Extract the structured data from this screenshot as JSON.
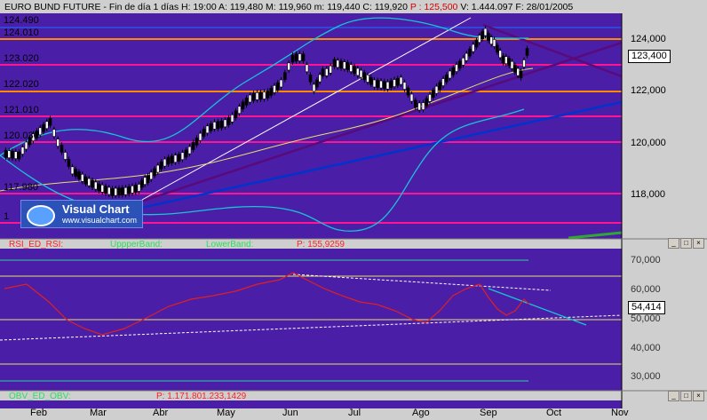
{
  "header": {
    "title": "EURO BUND FUTURE",
    "period": "Fin de día 1 días",
    "hour": "H: 19:00",
    "open": "A: 119,480",
    "max": "M: 119,960",
    "min": "m: 119,440",
    "close": "C: 119,920",
    "p": "P : 125,500",
    "volume": "V: 1.444.097",
    "date": "F: 28/01/2005"
  },
  "price_panel": {
    "left_levels": [
      "124.490",
      "124.010",
      "123.020",
      "122.020",
      "121.010",
      "120.030",
      "117.980",
      "1"
    ],
    "axis_labels": [
      "124,000",
      "122,000",
      "120,000",
      "118,000"
    ],
    "current_price": "123,400",
    "logo": {
      "title": "Visual Chart",
      "url": "www.visualchart.com"
    }
  },
  "rsi_panel": {
    "label": "RSI_ED_RSI:",
    "upper_band_label": "UppperBand:",
    "lower_band_label": "LowerBand:",
    "p_value": "P: 155,9259",
    "axis_labels": [
      "70,000",
      "60,000",
      "50,000",
      "40,000",
      "30,000"
    ],
    "current_value": "54,414"
  },
  "obv_panel": {
    "label": "OBV_ED_OBV:",
    "p_value": "P: 1.171.801.233,1429"
  },
  "time_axis": {
    "months": [
      "Feb",
      "Mar",
      "Abr",
      "May",
      "Jun",
      "Jul",
      "Ago",
      "Sep",
      "Oct",
      "Nov"
    ]
  },
  "colors": {
    "chart_bg": "#4b1ea8",
    "panel_border": "#cfcfcf",
    "support_line": "#0033cc",
    "trend_line": "#5a0a7a",
    "pink_level": "#ff1493",
    "orange_level": "#ff8a00"
  }
}
